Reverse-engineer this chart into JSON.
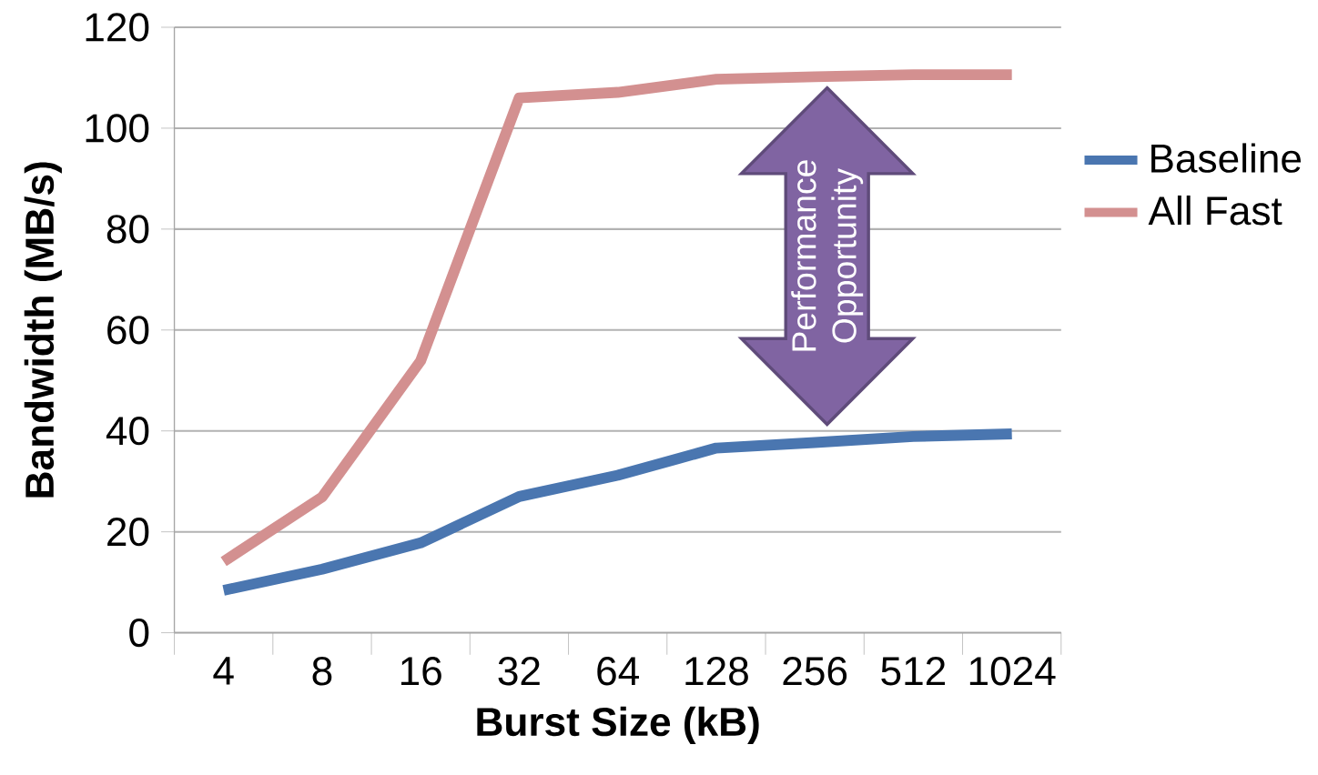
{
  "chart_data": {
    "type": "line",
    "xlabel": "Burst Size (kB)",
    "ylabel": "Bandwidth (MB/s)",
    "categories": [
      "4",
      "8",
      "16",
      "32",
      "64",
      "128",
      "256",
      "512",
      "1024"
    ],
    "series": [
      {
        "name": "Baseline",
        "color": "#4a76b0",
        "values": [
          8.4,
          12.6,
          17.8,
          27.0,
          31.2,
          36.6,
          37.7,
          38.9,
          39.4
        ]
      },
      {
        "name": "All Fast",
        "color": "#d39090",
        "values": [
          14.1,
          26.9,
          53.9,
          106.0,
          107.1,
          109.7,
          110.2,
          110.6,
          110.6
        ]
      }
    ],
    "ylim": [
      0,
      120
    ],
    "yticks": [
      0,
      20,
      40,
      60,
      80,
      100,
      120
    ],
    "grid": "y",
    "legend": "right",
    "annotations": [
      "Performance Opportunity"
    ]
  }
}
